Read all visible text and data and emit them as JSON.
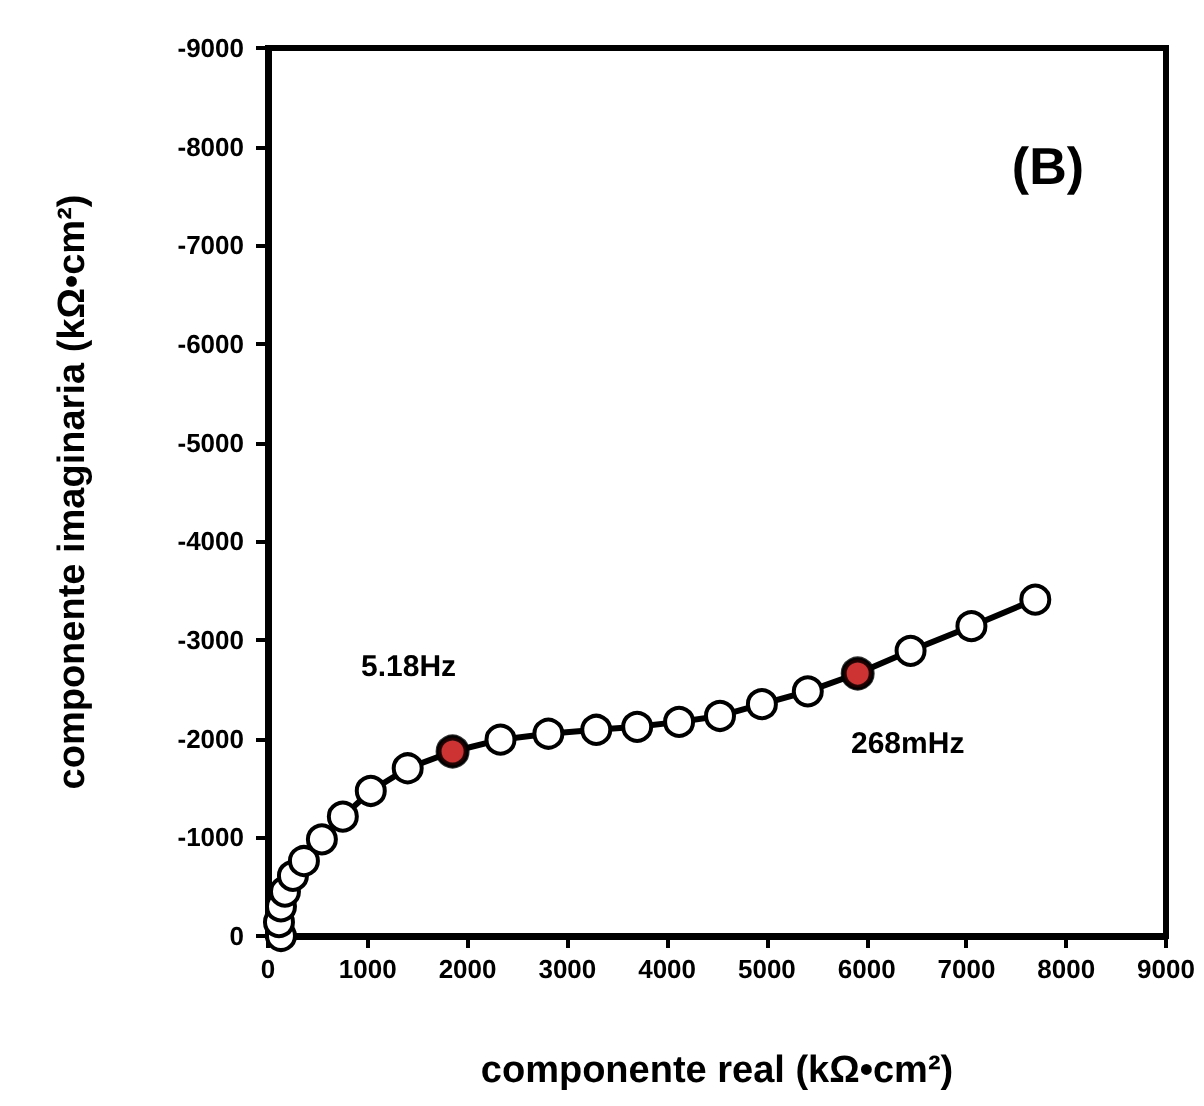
{
  "chart_data": {
    "type": "line",
    "xlabel": "componente real (kΩ•cm²)",
    "ylabel": "componente imaginaria (kΩ•cm²)",
    "annotations": [
      "(B)",
      {
        "text": "5.18Hz",
        "x": 1850,
        "y": -1870
      },
      {
        "text": "268mHz",
        "x": 5910,
        "y": -2660
      }
    ],
    "series": [
      {
        "color": "#000000",
        "marker": "circle",
        "x": [
          130,
          110,
          130,
          170,
          250,
          360,
          540,
          750,
          1030,
          1400,
          1850,
          2330,
          2810,
          3290,
          3700,
          4120,
          4530,
          4950,
          5410,
          5910,
          6440,
          7050,
          7690
        ],
        "values": [
          0,
          -140,
          -300,
          -450,
          -610,
          -760,
          -980,
          -1210,
          -1470,
          -1700,
          -1870,
          -1990,
          -2050,
          -2090,
          -2120,
          -2170,
          -2230,
          -2350,
          -2480,
          -2660,
          -2890,
          -3140,
          -3410
        ]
      },
      {
        "type": "scatter",
        "color": "#c00000",
        "marker": "circle",
        "x": [
          1850,
          5910
        ],
        "values": [
          -1870,
          -2660
        ]
      }
    ],
    "xlim": [
      0,
      9000
    ],
    "xticks": [
      0,
      1000,
      2000,
      3000,
      4000,
      5000,
      6000,
      7000,
      8000,
      9000
    ],
    "ylim": [
      0,
      -9000
    ],
    "yticks": [
      0,
      -1000,
      -2000,
      -3000,
      -4000,
      -5000,
      -6000,
      -7000,
      -8000,
      -9000
    ],
    "grid": false
  }
}
